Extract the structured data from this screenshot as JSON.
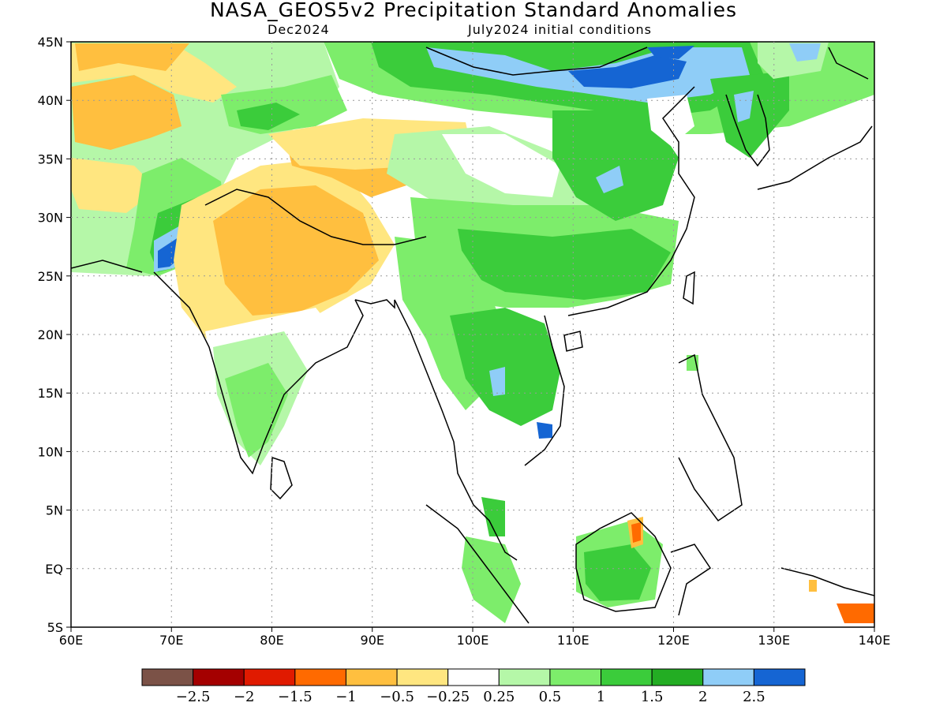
{
  "title": "NASA_GEOS5v2 Precipitation Standard Anomalies",
  "subtitle_left": "Dec2024",
  "subtitle_right": "July2024 initial conditions",
  "axes": {
    "lon_labels": [
      "60E",
      "70E",
      "80E",
      "90E",
      "100E",
      "110E",
      "120E",
      "130E",
      "140E"
    ],
    "lat_labels": [
      "45N",
      "40N",
      "35N",
      "30N",
      "25N",
      "20N",
      "15N",
      "10N",
      "5N",
      "EQ",
      "5S"
    ],
    "lon_range": [
      60,
      140
    ],
    "lat_range": [
      -5,
      45
    ]
  },
  "colorbar": {
    "labels": [
      "-2.5",
      "-2",
      "-1.5",
      "-1",
      "-0.5",
      "-0.25",
      "0.25",
      "0.5",
      "1",
      "1.5",
      "2",
      "2.5"
    ],
    "colors": [
      "#7b5247",
      "#a40000",
      "#e01a00",
      "#ff6a00",
      "#ffbf3f",
      "#ffe680",
      "#ffffff",
      "#b5f7a8",
      "#7ded6b",
      "#3bcc3b",
      "#23ad23",
      "#8fcdf7",
      "#1565d3"
    ]
  }
}
